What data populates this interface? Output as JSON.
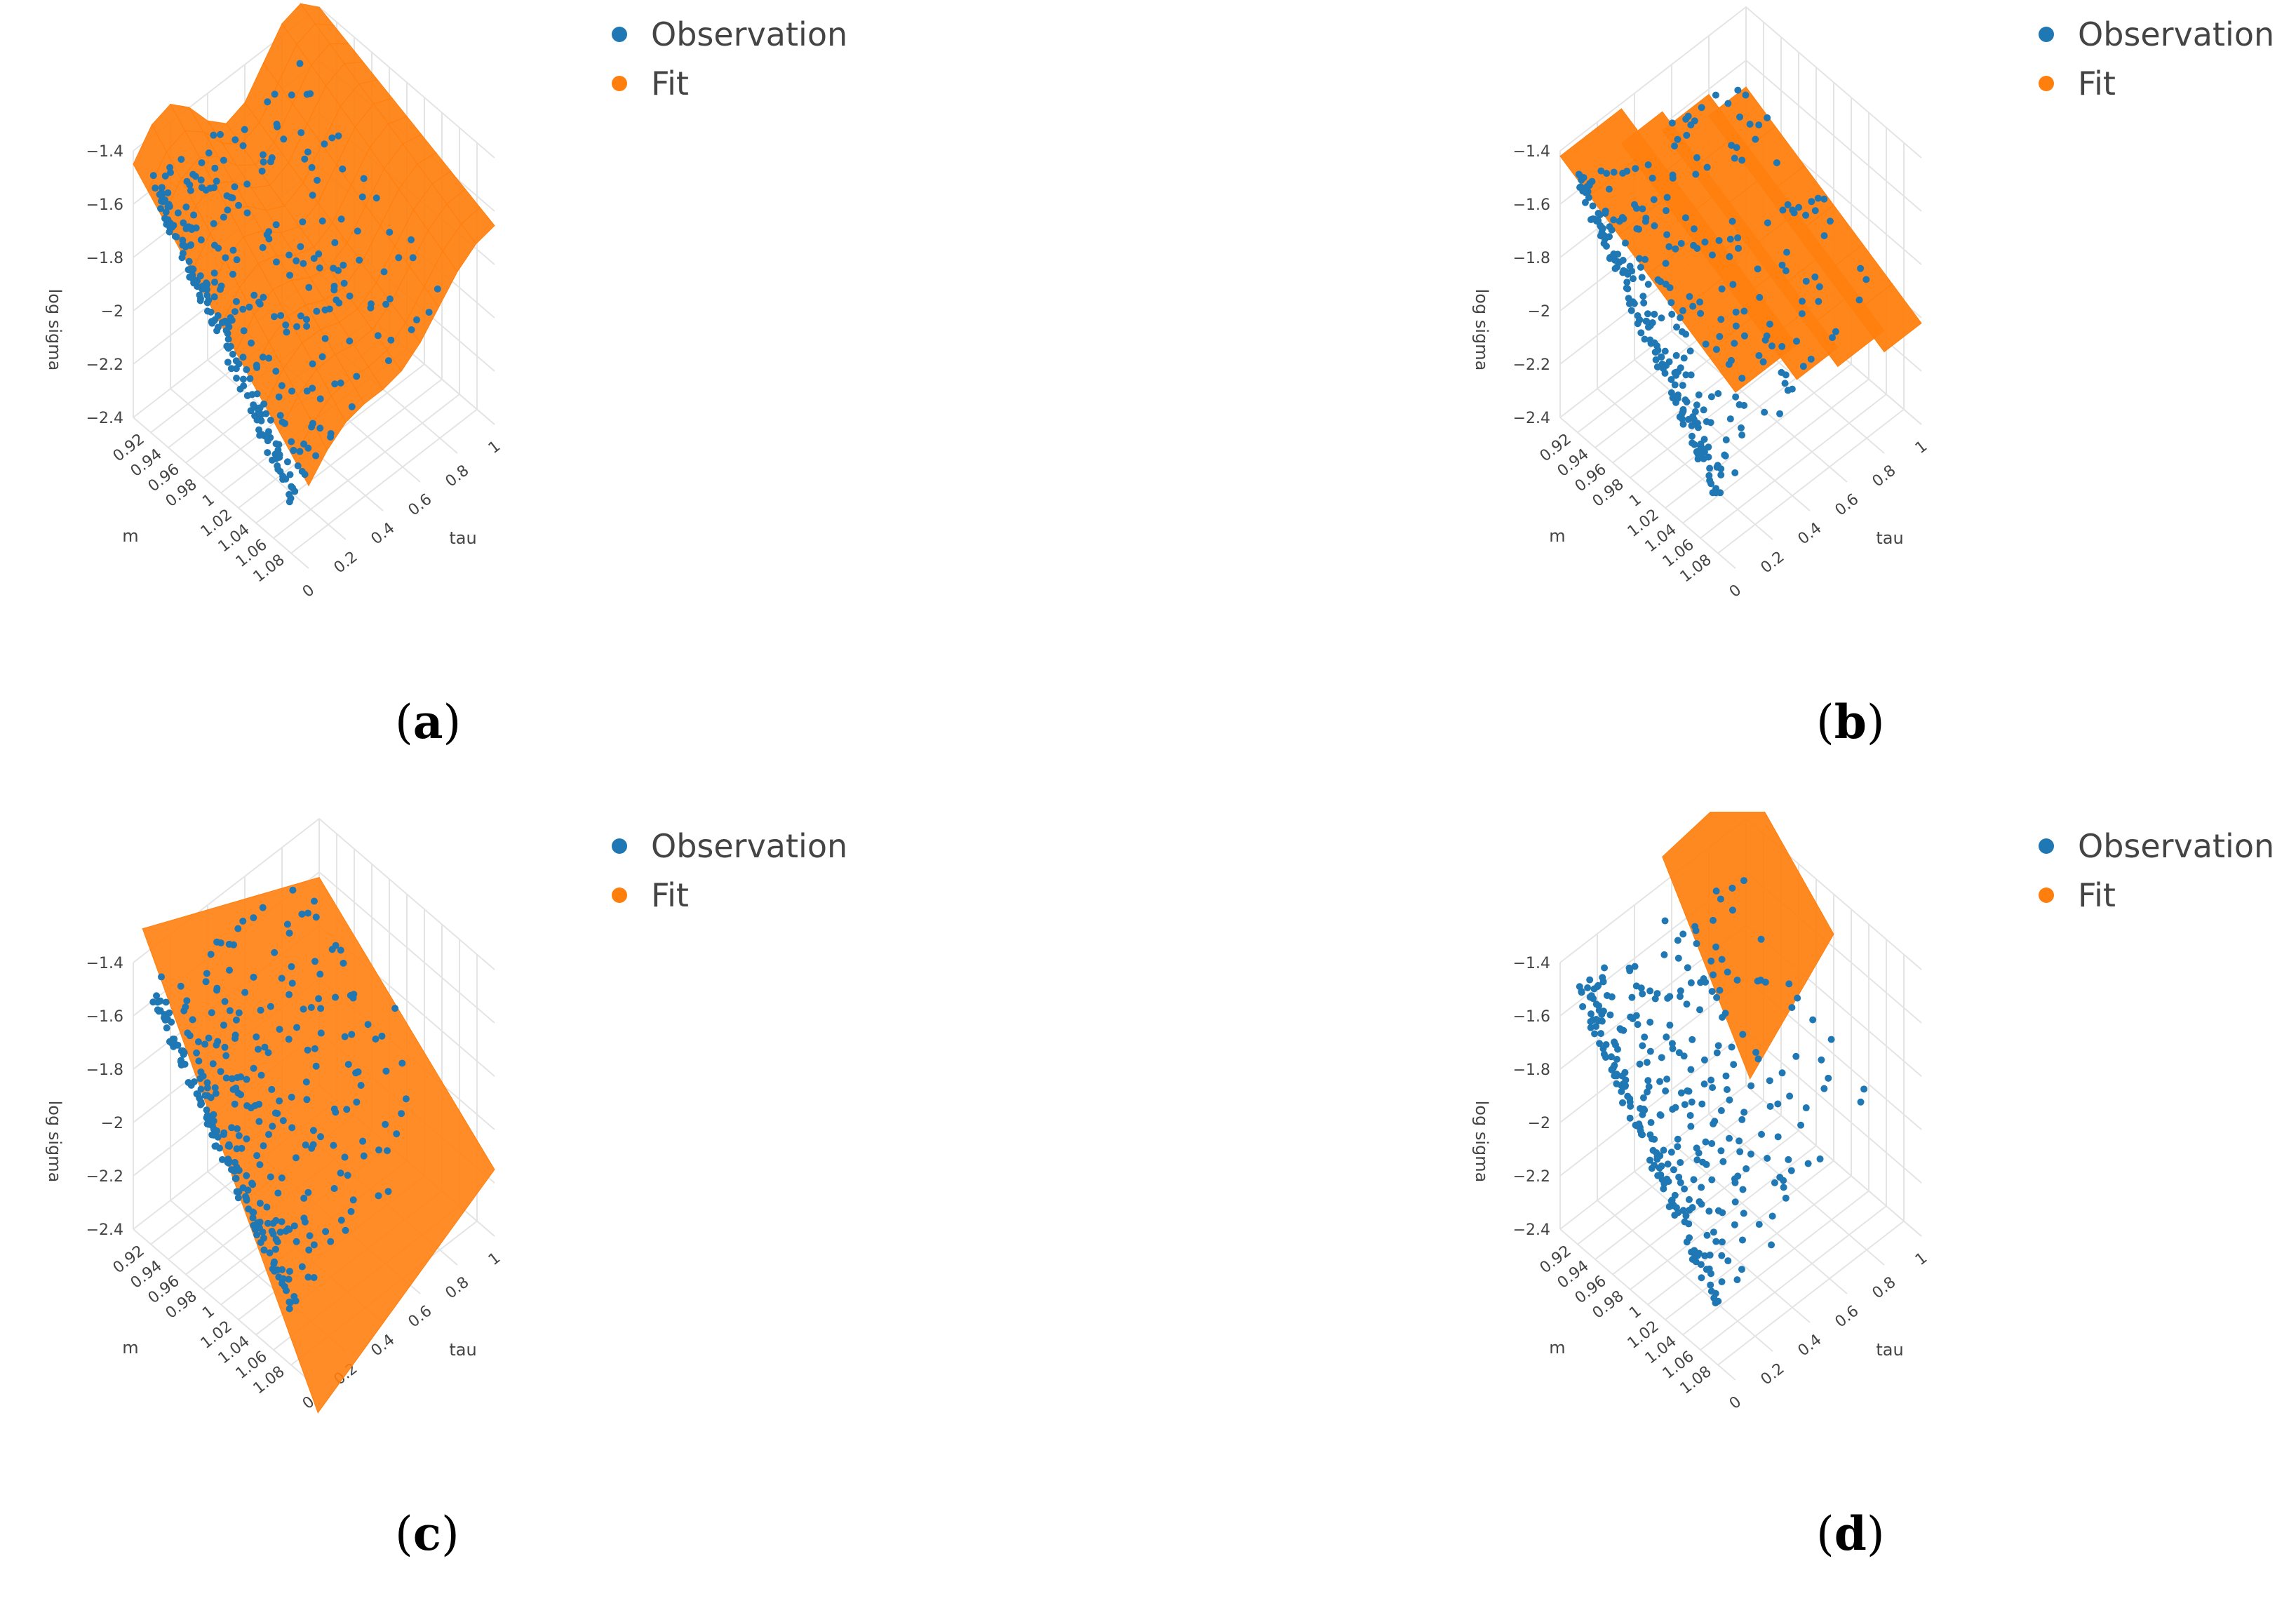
{
  "legend": {
    "observation": "Observation",
    "fit": "Fit"
  },
  "colors": {
    "observation": "#1f77b4",
    "fit": "#ff7f0e",
    "grid": "#e4e4e4",
    "tick": "#444444"
  },
  "chart_data": [
    {
      "type": "scatter3d",
      "panel": "a",
      "caption": "a",
      "fit_shape": "smooth-surface",
      "xlabel": "m",
      "ylabel": "tau",
      "zlabel": "log sigma",
      "x_ticks": [
        "0.92",
        "0.94",
        "0.96",
        "0.98",
        "1",
        "1.02",
        "1.04",
        "1.06",
        "1.08"
      ],
      "y_ticks": [
        "0",
        "0.2",
        "0.4",
        "0.6",
        "0.8",
        "1"
      ],
      "z_ticks": [
        "-1.4",
        "-1.6",
        "-1.8",
        "-2",
        "-2.2",
        "-2.4"
      ],
      "xlim": [
        0.9,
        1.1
      ],
      "ylim": [
        0,
        1
      ],
      "zlim": [
        -2.4,
        -1.4
      ],
      "series": [
        {
          "name": "Observation",
          "description": "observed log implied volatility points, mostly at short maturity"
        },
        {
          "name": "Fit",
          "description": "nonparametric smooth surface"
        }
      ]
    },
    {
      "type": "scatter3d",
      "panel": "b",
      "caption": "b",
      "fit_shape": "stepped-strips",
      "xlabel": "m",
      "ylabel": "tau",
      "zlabel": "log sigma",
      "x_ticks": [
        "0.92",
        "0.94",
        "0.96",
        "0.98",
        "1",
        "1.02",
        "1.04",
        "1.06",
        "1.08"
      ],
      "y_ticks": [
        "0",
        "0.2",
        "0.4",
        "0.6",
        "0.8",
        "1"
      ],
      "z_ticks": [
        "-1.4",
        "-1.6",
        "-1.8",
        "-2",
        "-2.2",
        "-2.4"
      ],
      "xlim": [
        0.9,
        1.1
      ],
      "ylim": [
        0,
        1
      ],
      "zlim": [
        -2.4,
        -1.4
      ],
      "series": [
        {
          "name": "Observation",
          "description": "observed log implied volatility points"
        },
        {
          "name": "Fit",
          "description": "piecewise stepped surface with strips"
        }
      ]
    },
    {
      "type": "scatter3d",
      "panel": "c",
      "caption": "c",
      "fit_shape": "plane",
      "xlabel": "m",
      "ylabel": "tau",
      "zlabel": "log sigma",
      "x_ticks": [
        "0.92",
        "0.94",
        "0.96",
        "0.98",
        "1",
        "1.02",
        "1.04",
        "1.06",
        "1.08"
      ],
      "y_ticks": [
        "0",
        "0.2",
        "0.4",
        "0.6",
        "0.8",
        "1"
      ],
      "z_ticks": [
        "-1.4",
        "-1.6",
        "-1.8",
        "-2",
        "-2.2",
        "-2.4"
      ],
      "xlim": [
        0.9,
        1.1
      ],
      "ylim": [
        0,
        1
      ],
      "zlim": [
        -2.4,
        -1.4
      ],
      "series": [
        {
          "name": "Observation",
          "description": "observed log implied volatility points"
        },
        {
          "name": "Fit",
          "description": "linear plane fit"
        }
      ]
    },
    {
      "type": "scatter3d",
      "panel": "d",
      "caption": "d",
      "fit_shape": "plane-high",
      "xlabel": "m",
      "ylabel": "tau",
      "zlabel": "log sigma",
      "x_ticks": [
        "0.92",
        "0.94",
        "0.96",
        "0.98",
        "1",
        "1.02",
        "1.04",
        "1.06",
        "1.08"
      ],
      "y_ticks": [
        "0",
        "0.2",
        "0.4",
        "0.6",
        "0.8",
        "1"
      ],
      "z_ticks": [
        "-1.4",
        "-1.6",
        "-1.8",
        "-2",
        "-2.2",
        "-2.4"
      ],
      "xlim": [
        0.9,
        1.1
      ],
      "ylim": [
        0,
        1
      ],
      "zlim": [
        -2.4,
        -1.4
      ],
      "series": [
        {
          "name": "Observation",
          "description": "observed log implied volatility points"
        },
        {
          "name": "Fit",
          "description": "linear plane fit placed higher"
        }
      ]
    }
  ]
}
